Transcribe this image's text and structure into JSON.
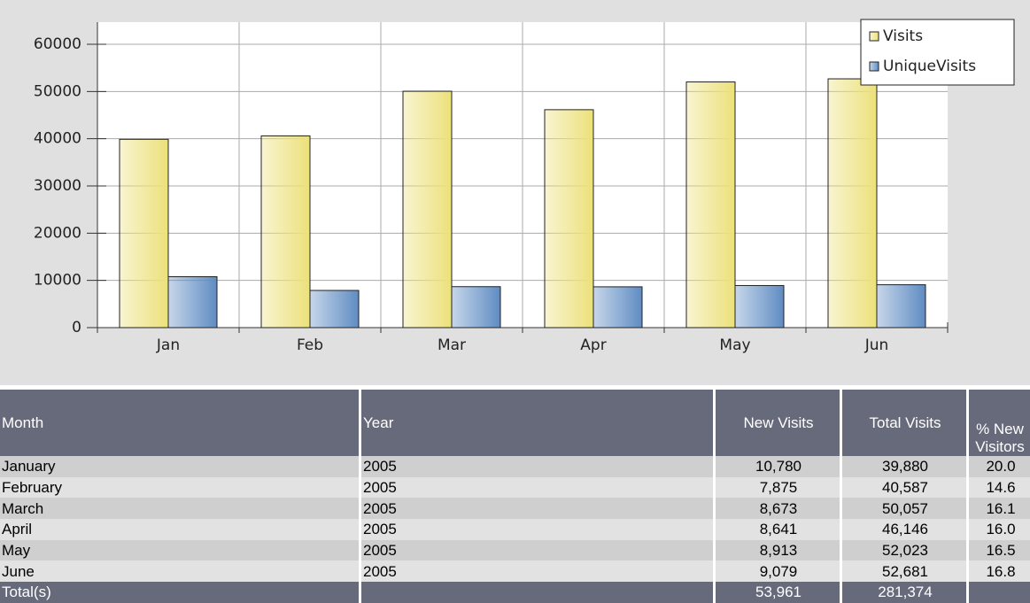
{
  "chart_data": {
    "type": "bar",
    "categories": [
      "Jan",
      "Feb",
      "Mar",
      "Apr",
      "May",
      "Jun"
    ],
    "series": [
      {
        "name": "Visits",
        "color": "#ece17a",
        "values": [
          39880,
          40587,
          50057,
          46146,
          52023,
          52681
        ]
      },
      {
        "name": "UniqueVisits",
        "color": "#5f8cc3",
        "values": [
          10780,
          7875,
          8673,
          8641,
          8913,
          9079
        ]
      }
    ],
    "ylim": [
      0,
      60000
    ],
    "yticks": [
      0,
      10000,
      20000,
      30000,
      40000,
      50000,
      60000
    ],
    "grid": true,
    "legend": "top-right"
  },
  "table": {
    "header": [
      "Month",
      "Year",
      "New Visits",
      "Total Visits",
      "% New Visitors"
    ],
    "rows": [
      [
        "January",
        "2005",
        "10,780",
        "39,880",
        "20.0"
      ],
      [
        "February",
        "2005",
        "7,875",
        "40,587",
        "14.6"
      ],
      [
        "March",
        "2005",
        "8,673",
        "50,057",
        "16.1"
      ],
      [
        "April",
        "2005",
        "8,641",
        "46,146",
        "16.0"
      ],
      [
        "May",
        "2005",
        "8,913",
        "52,023",
        "16.5"
      ],
      [
        "June",
        "2005",
        "9,079",
        "52,681",
        "16.8"
      ]
    ],
    "totals": {
      "label": "Total(s)",
      "new_visits": "53,961",
      "total_visits": "281,374"
    }
  }
}
